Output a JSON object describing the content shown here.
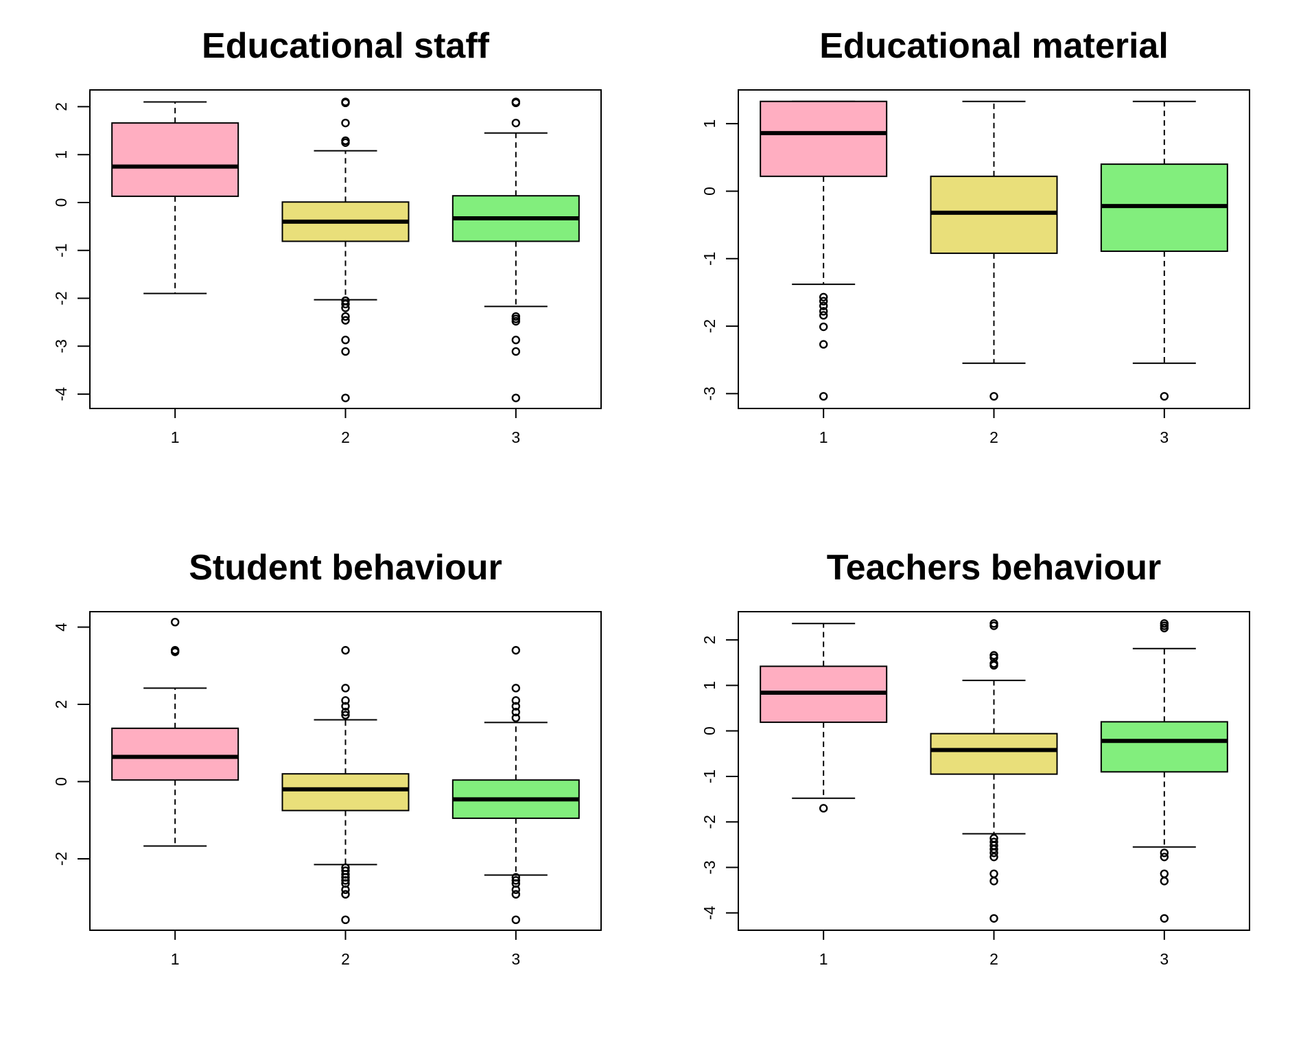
{
  "colors": {
    "group_1": "#FFAEC1",
    "group_2": "#E9DF7A",
    "group_3": "#82EE7D"
  },
  "chart_data": [
    {
      "type": "box",
      "title": "Educational staff",
      "categories": [
        "1",
        "2",
        "3"
      ],
      "ylim": [
        -4.3,
        2.35
      ],
      "yticks": [
        {
          "v": 2,
          "label": "2"
        },
        {
          "v": 1,
          "label": "1"
        },
        {
          "v": 0,
          "label": "0"
        },
        {
          "v": -1,
          "label": "-1"
        },
        {
          "v": -2,
          "label": "-2"
        },
        {
          "v": -3,
          "label": "-3"
        },
        {
          "v": -4,
          "label": "-4"
        }
      ],
      "boxes": [
        {
          "whisker_low": -1.9,
          "q1": 0.13,
          "median": 0.75,
          "q3": 1.66,
          "whisker_high": 2.1,
          "outliers": []
        },
        {
          "whisker_low": -2.03,
          "q1": -0.81,
          "median": -0.4,
          "q3": 0.01,
          "whisker_high": 1.08,
          "outliers": [
            2.1,
            2.08,
            1.66,
            1.29,
            1.25,
            -2.05,
            -2.12,
            -2.2,
            -2.38,
            -2.46,
            -2.87,
            -3.11,
            -4.08
          ]
        },
        {
          "whisker_low": -2.17,
          "q1": -0.81,
          "median": -0.33,
          "q3": 0.14,
          "whisker_high": 1.45,
          "outliers": [
            2.1,
            2.08,
            1.66,
            -2.38,
            -2.43,
            -2.48,
            -2.87,
            -3.11,
            -4.08
          ]
        }
      ]
    },
    {
      "type": "box",
      "title": "Educational material",
      "categories": [
        "1",
        "2",
        "3"
      ],
      "ylim": [
        -3.22,
        1.5
      ],
      "yticks": [
        {
          "v": 1,
          "label": "1"
        },
        {
          "v": 0,
          "label": "0"
        },
        {
          "v": -1,
          "label": "-1"
        },
        {
          "v": -2,
          "label": "-2"
        },
        {
          "v": -3,
          "label": "-3"
        }
      ],
      "boxes": [
        {
          "whisker_low": -1.38,
          "q1": 0.22,
          "median": 0.86,
          "q3": 1.33,
          "whisker_high": 1.33,
          "outliers": [
            -1.57,
            -1.63,
            -1.7,
            -1.78,
            -1.84,
            -2.01,
            -2.27,
            -3.04
          ]
        },
        {
          "whisker_low": -2.55,
          "q1": -0.92,
          "median": -0.32,
          "q3": 0.22,
          "whisker_high": 1.33,
          "outliers": [
            -3.04
          ]
        },
        {
          "whisker_low": -2.55,
          "q1": -0.89,
          "median": -0.22,
          "q3": 0.4,
          "whisker_high": 1.33,
          "outliers": [
            -3.04
          ]
        }
      ]
    },
    {
      "type": "box",
      "title": "Student behaviour",
      "categories": [
        "1",
        "2",
        "3"
      ],
      "ylim": [
        -3.85,
        4.4
      ],
      "yticks": [
        {
          "v": 4,
          "label": "4"
        },
        {
          "v": 2,
          "label": "2"
        },
        {
          "v": 0,
          "label": "0"
        },
        {
          "v": -2,
          "label": "-2"
        }
      ],
      "boxes": [
        {
          "whisker_low": -1.67,
          "q1": 0.04,
          "median": 0.64,
          "q3": 1.38,
          "whisker_high": 2.42,
          "outliers": [
            4.13,
            3.4,
            3.36
          ]
        },
        {
          "whisker_low": -2.15,
          "q1": -0.75,
          "median": -0.2,
          "q3": 0.2,
          "whisker_high": 1.6,
          "outliers": [
            3.4,
            2.42,
            2.1,
            1.95,
            1.8,
            1.72,
            -2.23,
            -2.31,
            -2.4,
            -2.48,
            -2.56,
            -2.64,
            -2.8,
            -2.92,
            -3.58
          ]
        },
        {
          "whisker_low": -2.42,
          "q1": -0.95,
          "median": -0.46,
          "q3": 0.04,
          "whisker_high": 1.53,
          "outliers": [
            3.4,
            2.42,
            2.1,
            1.95,
            1.8,
            1.65,
            -2.48,
            -2.56,
            -2.64,
            -2.8,
            -2.92,
            -3.58
          ]
        }
      ]
    },
    {
      "type": "box",
      "title": "Teachers behaviour",
      "categories": [
        "1",
        "2",
        "3"
      ],
      "ylim": [
        -4.38,
        2.62
      ],
      "yticks": [
        {
          "v": 2,
          "label": "2"
        },
        {
          "v": 1,
          "label": "1"
        },
        {
          "v": 0,
          "label": "0"
        },
        {
          "v": -1,
          "label": "-1"
        },
        {
          "v": -2,
          "label": "-2"
        },
        {
          "v": -3,
          "label": "-3"
        },
        {
          "v": -4,
          "label": "-4"
        }
      ],
      "boxes": [
        {
          "whisker_low": -1.48,
          "q1": 0.19,
          "median": 0.84,
          "q3": 1.42,
          "whisker_high": 2.36,
          "outliers": [
            -1.7
          ]
        },
        {
          "whisker_low": -2.26,
          "q1": -0.95,
          "median": -0.42,
          "q3": -0.06,
          "whisker_high": 1.11,
          "outliers": [
            2.36,
            2.31,
            1.66,
            1.61,
            1.48,
            1.44,
            -2.36,
            -2.44,
            -2.52,
            -2.6,
            -2.68,
            -2.77,
            -3.14,
            -3.3,
            -4.12
          ]
        },
        {
          "whisker_low": -2.55,
          "q1": -0.9,
          "median": -0.22,
          "q3": 0.2,
          "whisker_high": 1.81,
          "outliers": [
            2.36,
            2.31,
            2.26,
            -2.68,
            -2.77,
            -3.14,
            -3.3,
            -4.12
          ]
        }
      ]
    }
  ]
}
